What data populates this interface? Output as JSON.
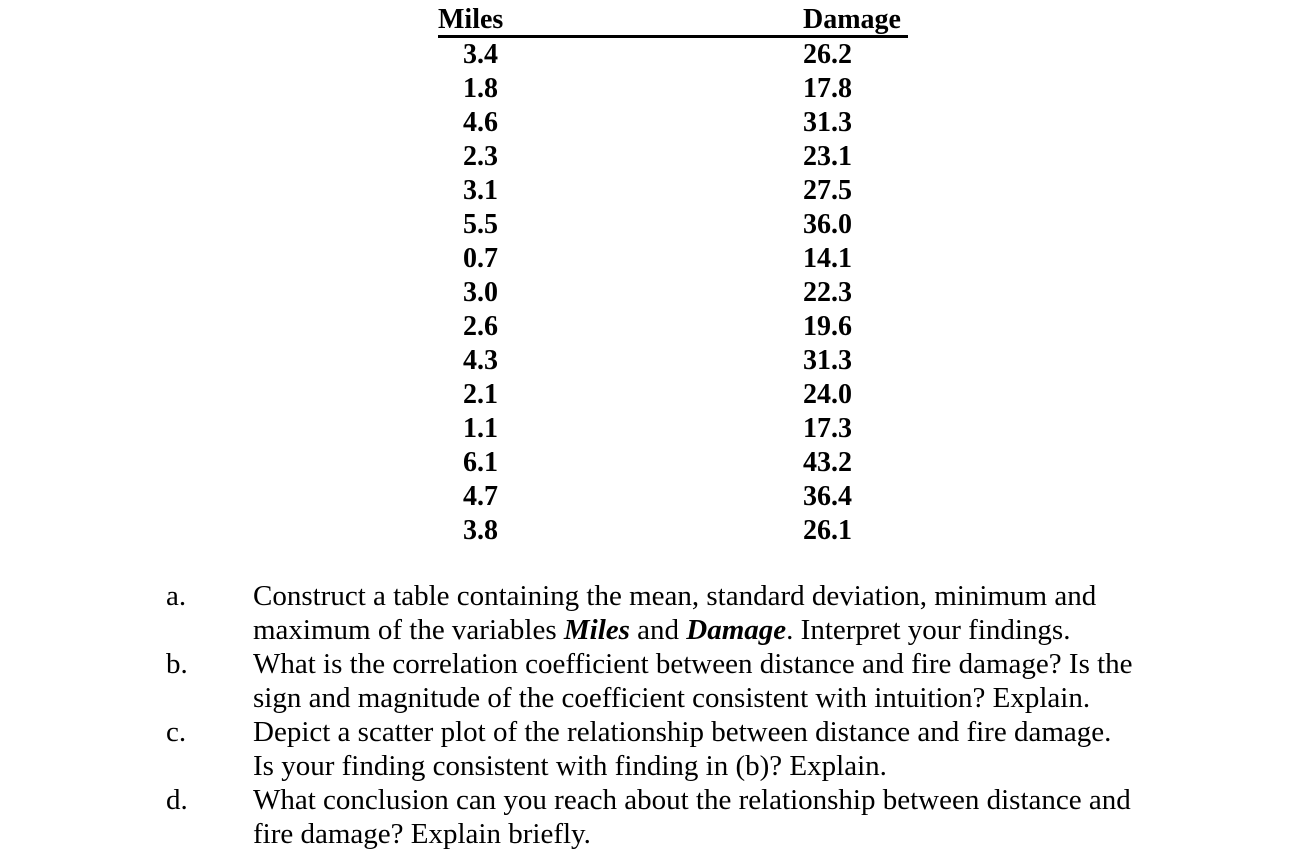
{
  "table": {
    "headers": [
      "Miles",
      "Damage"
    ],
    "rows": [
      {
        "miles": "3.4",
        "damage": "26.2"
      },
      {
        "miles": "1.8",
        "damage": "17.8"
      },
      {
        "miles": "4.6",
        "damage": "31.3"
      },
      {
        "miles": "2.3",
        "damage": "23.1"
      },
      {
        "miles": "3.1",
        "damage": "27.5"
      },
      {
        "miles": "5.5",
        "damage": "36.0"
      },
      {
        "miles": "0.7",
        "damage": "14.1"
      },
      {
        "miles": "3.0",
        "damage": "22.3"
      },
      {
        "miles": "2.6",
        "damage": "19.6"
      },
      {
        "miles": "4.3",
        "damage": "31.3"
      },
      {
        "miles": "2.1",
        "damage": "24.0"
      },
      {
        "miles": "1.1",
        "damage": "17.3"
      },
      {
        "miles": "6.1",
        "damage": "43.2"
      },
      {
        "miles": "4.7",
        "damage": "36.4"
      },
      {
        "miles": "3.8",
        "damage": "26.1"
      }
    ]
  },
  "questions": [
    {
      "label": "a.",
      "line1": "Construct a table containing the mean, standard deviation, minimum and",
      "line2_seg1": "maximum of the variables ",
      "line2_seg2": "Miles",
      "line2_seg3": " and ",
      "line2_seg4": "Damage",
      "line2_seg5": ". Interpret your findings."
    },
    {
      "label": "b.",
      "line1": "What is the correlation coefficient between distance and fire damage? Is the",
      "line2": "sign and magnitude of the coefficient consistent with intuition? Explain."
    },
    {
      "label": "c.",
      "line1": "Depict a scatter plot of the relationship between distance and fire damage.",
      "line2": "Is your finding consistent with finding in (b)? Explain."
    },
    {
      "label": "d.",
      "line1": "What conclusion can you reach about the relationship between distance and",
      "line2": "fire damage? Explain briefly."
    }
  ]
}
